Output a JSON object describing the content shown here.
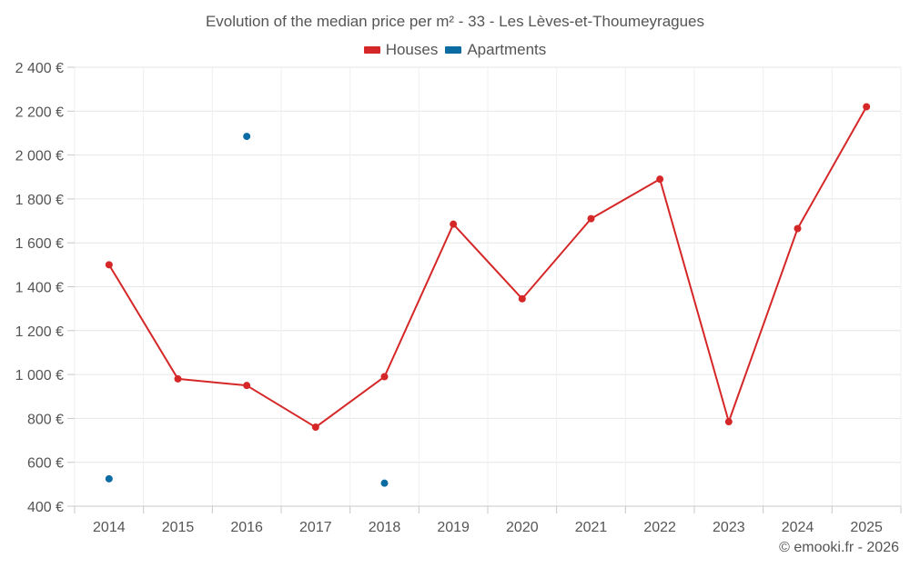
{
  "chart_data": {
    "type": "line",
    "title": "Evolution of the median price per m² - 33 - Les Lèves-et-Thoumeyragues",
    "categories": [
      "2014",
      "2015",
      "2016",
      "2017",
      "2018",
      "2019",
      "2020",
      "2021",
      "2022",
      "2023",
      "2024",
      "2025"
    ],
    "y_ticks": [
      "400 €",
      "600 €",
      "800 €",
      "1 000 €",
      "1 200 €",
      "1 400 €",
      "1 600 €",
      "1 800 €",
      "2 000 €",
      "2 200 €",
      "2 400 €"
    ],
    "ylim": [
      400,
      2400
    ],
    "series": [
      {
        "name": "Houses",
        "color": "#d62728",
        "line": true,
        "values": [
          1500,
          980,
          950,
          760,
          990,
          1685,
          1345,
          1710,
          1890,
          785,
          1665,
          2220
        ]
      },
      {
        "name": "Apartments",
        "color": "#0b6ba3",
        "line": false,
        "values": [
          525,
          null,
          2085,
          null,
          505,
          null,
          null,
          null,
          null,
          null,
          null,
          null
        ]
      }
    ],
    "legend_position": "top-center",
    "grid": true
  },
  "credit": "© emooki.fr - 2026"
}
